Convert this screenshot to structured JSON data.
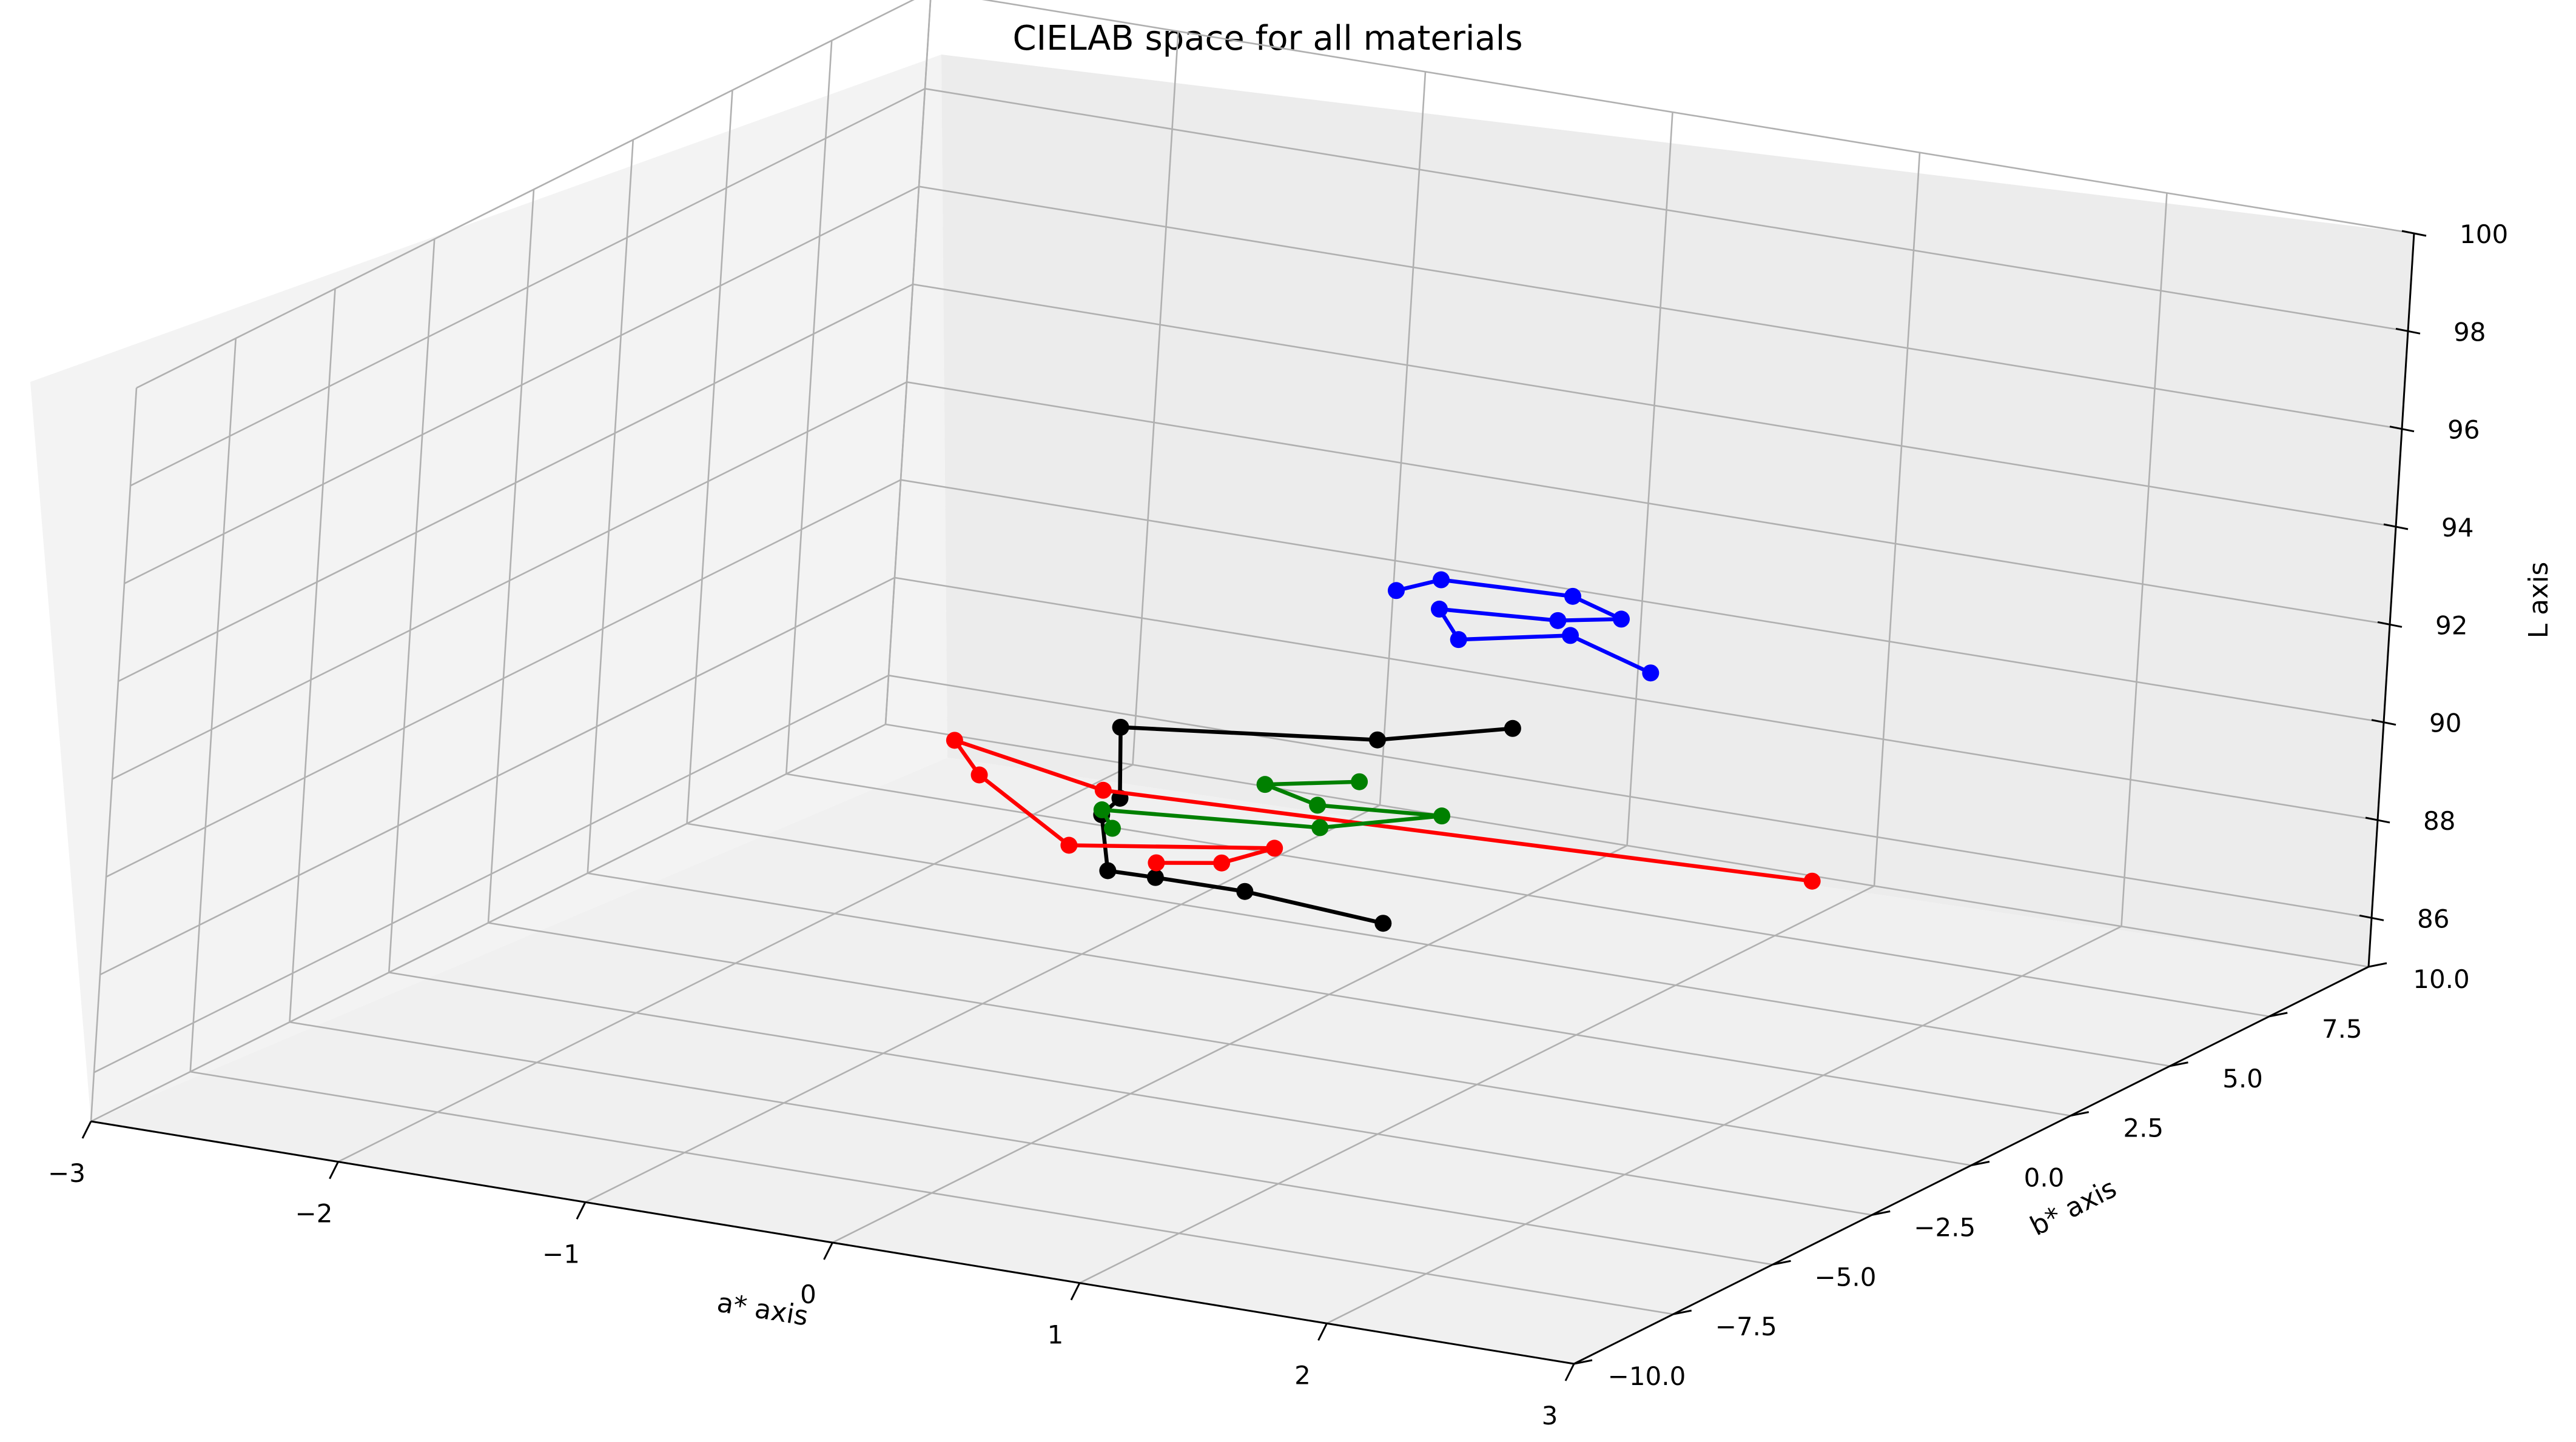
{
  "chart_data": {
    "type": "line",
    "projection": "3d",
    "title": "CIELAB space for all materials",
    "xlabel": "a* axis",
    "ylabel": "b* axis",
    "zlabel": "L axis",
    "xlim": [
      -3,
      3
    ],
    "ylim": [
      -10,
      10
    ],
    "zlim": [
      85,
      100
    ],
    "x_ticks": [
      "−3",
      "−2",
      "−1",
      "0",
      "1",
      "2",
      "3"
    ],
    "y_ticks": [
      "−10.0",
      "−7.5",
      "−5.0",
      "−2.5",
      "0.0",
      "2.5",
      "5.0",
      "7.5",
      "10.0"
    ],
    "z_ticks": [
      "86",
      "88",
      "90",
      "92",
      "94",
      "96",
      "98",
      "100"
    ],
    "grid": true,
    "markers": "circle",
    "series": [
      {
        "color": "#0000ff",
        "points": [
          {
            "x": 0.4,
            "y": 1.0,
            "z": 94.2
          },
          {
            "x": 0.5,
            "y": 1.5,
            "z": 94.3
          },
          {
            "x": 0.8,
            "y": 3.0,
            "z": 93.6
          },
          {
            "x": 1.0,
            "y": 3.0,
            "z": 93.3
          },
          {
            "x": 0.7,
            "y": 3.3,
            "z": 92.9
          },
          {
            "x": 0.5,
            "y": 1.5,
            "z": 93.7
          },
          {
            "x": 0.6,
            "y": 1.4,
            "z": 93.2
          },
          {
            "x": 0.8,
            "y": 3.0,
            "z": 92.8
          },
          {
            "x": 1.1,
            "y": 3.2,
            "z": 92.2
          }
        ]
      },
      {
        "color": "#000000",
        "points": [
          {
            "x": 0.7,
            "y": 2.3,
            "z": 91.1
          },
          {
            "x": 0.3,
            "y": 1.4,
            "z": 90.9
          },
          {
            "x": -0.3,
            "y": -1.4,
            "z": 91.8
          },
          {
            "x": -0.1,
            "y": -2.6,
            "z": 91.0
          },
          {
            "x": -0.2,
            "y": -2.4,
            "z": 90.5
          },
          {
            "x": -0.1,
            "y": -2.8,
            "z": 89.6
          },
          {
            "x": 0.0,
            "y": -2.2,
            "z": 89.3
          },
          {
            "x": 0.3,
            "y": -1.8,
            "z": 89.1
          },
          {
            "x": 0.8,
            "y": -1.4,
            "z": 88.7
          }
        ]
      },
      {
        "color": "#ff0000",
        "points": [
          {
            "x": 2.4,
            "y": -0.7,
            "z": 90.6
          },
          {
            "x": -0.2,
            "y": -2.4,
            "z": 91.0
          },
          {
            "x": -0.9,
            "y": -1.8,
            "z": 91.2
          },
          {
            "x": -0.7,
            "y": -2.4,
            "z": 90.9
          },
          {
            "x": -0.2,
            "y": -3.2,
            "z": 90.2
          },
          {
            "x": 0.3,
            "y": -1.1,
            "z": 89.7
          },
          {
            "x": 0.2,
            "y": -1.8,
            "z": 89.6
          },
          {
            "x": 0.0,
            "y": -2.2,
            "z": 89.6
          }
        ]
      },
      {
        "color": "#008000",
        "points": [
          {
            "x": 0.5,
            "y": -0.3,
            "z": 90.9
          },
          {
            "x": 0.2,
            "y": -0.8,
            "z": 90.8
          },
          {
            "x": 0.4,
            "y": -0.7,
            "z": 90.5
          },
          {
            "x": 0.7,
            "y": 0.6,
            "z": 90.0
          },
          {
            "x": 0.4,
            "y": -0.6,
            "z": 90.0
          },
          {
            "x": -0.2,
            "y": -2.4,
            "z": 90.6
          },
          {
            "x": -0.2,
            "y": -2.1,
            "z": 90.1
          }
        ]
      }
    ]
  }
}
